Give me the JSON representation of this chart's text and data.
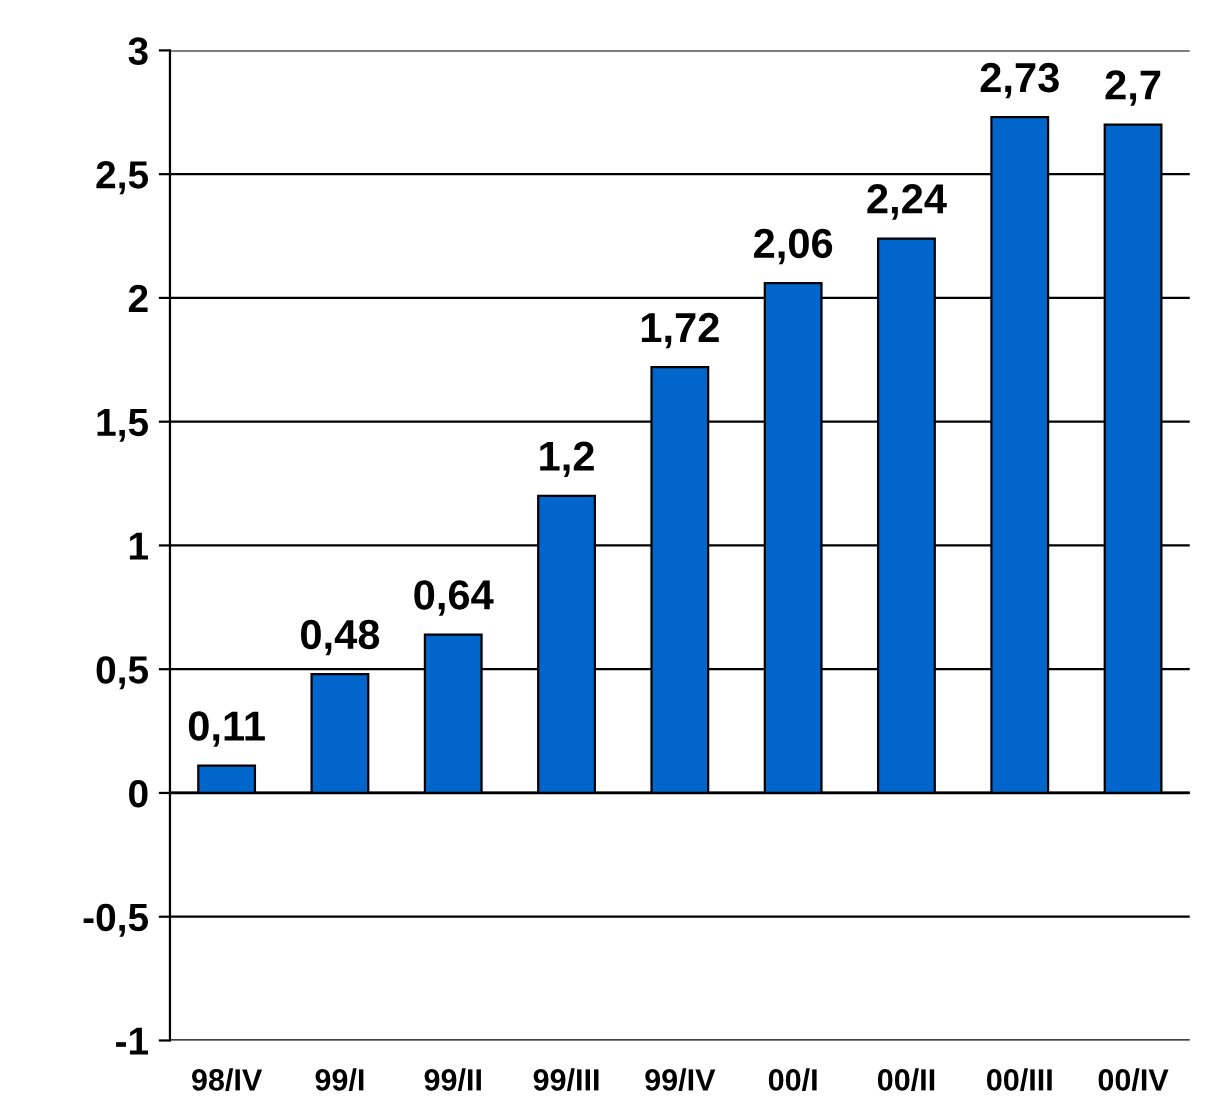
{
  "chart_data": {
    "type": "bar",
    "categories": [
      "98/IV",
      "99/I",
      "99/II",
      "99/III",
      "99/IV",
      "00/I",
      "00/II",
      "00/III",
      "00/IV"
    ],
    "values": [
      0.11,
      0.48,
      0.64,
      1.2,
      1.72,
      2.06,
      2.24,
      2.73,
      2.7
    ],
    "value_labels": [
      "0,11",
      "0,48",
      "0,64",
      "1,2",
      "1,72",
      "2,06",
      "2,24",
      "2,73",
      "2,7"
    ],
    "color": "#0066cc",
    "ylim": [
      -1,
      3
    ],
    "yticks": [
      {
        "value": -1,
        "label": "-1"
      },
      {
        "value": -0.5,
        "label": "-0,5"
      },
      0,
      {
        "value": 0.5,
        "label": "0,5"
      },
      1,
      {
        "value": 1.5,
        "label": "1,5"
      },
      2,
      {
        "value": 2.5,
        "label": "2,5"
      },
      3
    ],
    "grid": "y",
    "legend": false
  }
}
